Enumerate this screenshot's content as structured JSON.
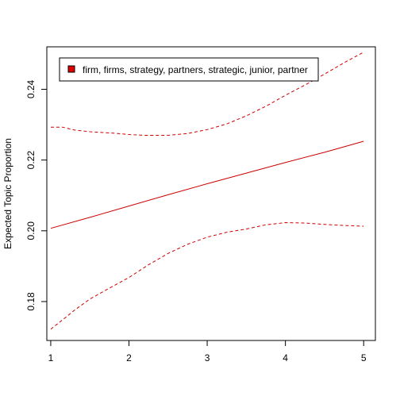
{
  "chart_data": {
    "type": "line",
    "title": "",
    "xlabel": "",
    "ylabel": "Expected Topic Proportion",
    "xlim": [
      0.95,
      5.15
    ],
    "ylim": [
      0.169,
      0.252
    ],
    "x_ticks": [
      "1",
      "2",
      "3",
      "4",
      "5"
    ],
    "y_ticks": [
      "0.18",
      "0.20",
      "0.22",
      "0.24"
    ],
    "grid": false,
    "legend_position": "top-left",
    "series": [
      {
        "name": "firm, firms, strategy, partners, strategic, junior, partner",
        "role": "estimate",
        "style": "solid",
        "color": "#cc0000",
        "x": [
          1,
          1.5,
          2,
          2.5,
          3,
          3.5,
          4,
          4.5,
          5
        ],
        "values": [
          0.2007,
          0.2038,
          0.207,
          0.2102,
          0.2133,
          0.2163,
          0.2193,
          0.2222,
          0.2253
        ]
      },
      {
        "name": "",
        "role": "upper bound",
        "style": "dashed",
        "color": "#cc0000",
        "x": [
          1,
          1.15,
          1.3,
          1.5,
          1.8,
          2,
          2.2,
          2.5,
          2.75,
          3,
          3.25,
          3.5,
          3.75,
          4,
          4.25,
          4.5,
          4.75,
          5
        ],
        "values": [
          0.2293,
          0.2293,
          0.2285,
          0.228,
          0.2276,
          0.2272,
          0.227,
          0.227,
          0.2275,
          0.2286,
          0.2302,
          0.2325,
          0.2352,
          0.2383,
          0.2412,
          0.2443,
          0.2475,
          0.2505
        ]
      },
      {
        "name": "",
        "role": "lower bound",
        "style": "dashed",
        "color": "#cc0000",
        "x": [
          1,
          1.15,
          1.3,
          1.5,
          1.75,
          2,
          2.25,
          2.5,
          2.75,
          3,
          3.25,
          3.5,
          3.75,
          4,
          4.25,
          4.5,
          4.75,
          5
        ],
        "values": [
          0.1722,
          0.1748,
          0.1775,
          0.1807,
          0.1838,
          0.1868,
          0.1904,
          0.1936,
          0.1962,
          0.1982,
          0.1996,
          0.2005,
          0.2017,
          0.2023,
          0.2022,
          0.2018,
          0.2015,
          0.2013
        ]
      }
    ]
  }
}
